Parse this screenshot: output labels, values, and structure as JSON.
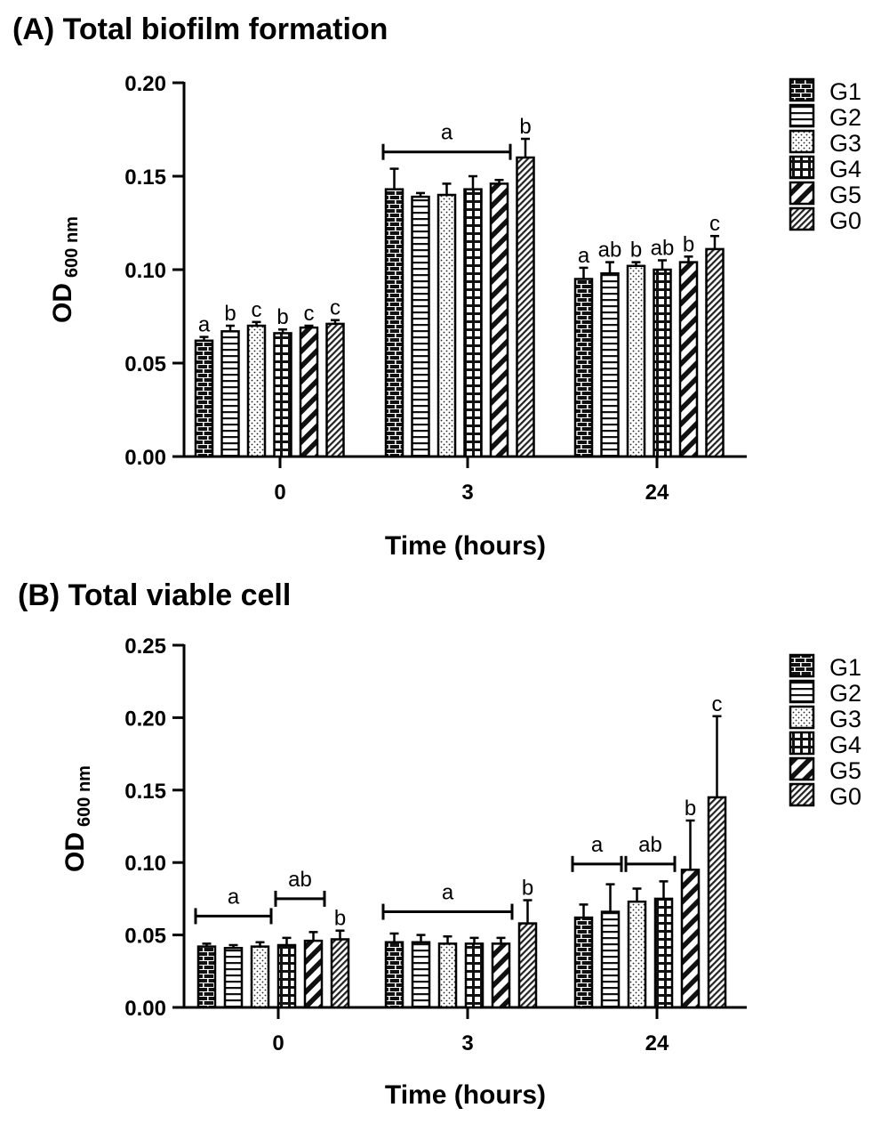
{
  "patterns": {
    "G1": "brick",
    "G2": "horizontal-lines",
    "G3": "dots",
    "G4": "grid",
    "G5": "diagonal-stripes",
    "G0": "fine-diagonal-hatch"
  },
  "chart_data": [
    {
      "type": "bar",
      "title": "(A) Total biofilm formation",
      "xlabel": "Time (hours)",
      "ylabel": "OD",
      "ylabel_sub": "600 nm",
      "ylim": [
        0,
        0.2
      ],
      "yticks": [
        "0.00",
        "0.05",
        "0.10",
        "0.15",
        "0.20"
      ],
      "categories": [
        "0",
        "3",
        "24"
      ],
      "legend_position": "top-right",
      "series": [
        {
          "name": "G1",
          "values": [
            0.062,
            0.143,
            0.095
          ],
          "errors": [
            0.002,
            0.011,
            0.006
          ]
        },
        {
          "name": "G2",
          "values": [
            0.067,
            0.139,
            0.098
          ],
          "errors": [
            0.003,
            0.002,
            0.006
          ]
        },
        {
          "name": "G3",
          "values": [
            0.07,
            0.14,
            0.102
          ],
          "errors": [
            0.002,
            0.006,
            0.002
          ]
        },
        {
          "name": "G4",
          "values": [
            0.066,
            0.143,
            0.1
          ],
          "errors": [
            0.002,
            0.007,
            0.005
          ]
        },
        {
          "name": "G5",
          "values": [
            0.069,
            0.146,
            0.104
          ],
          "errors": [
            0.001,
            0.002,
            0.003
          ]
        },
        {
          "name": "G0",
          "values": [
            0.071,
            0.16,
            0.111
          ],
          "errors": [
            0.002,
            0.01,
            0.007
          ]
        }
      ],
      "annotations": [
        {
          "text": "a",
          "category": 0,
          "series": [
            0
          ],
          "bracket": false
        },
        {
          "text": "b",
          "category": 0,
          "series": [
            1
          ],
          "bracket": false
        },
        {
          "text": "c",
          "category": 0,
          "series": [
            2
          ],
          "bracket": false
        },
        {
          "text": "b",
          "category": 0,
          "series": [
            3
          ],
          "bracket": false
        },
        {
          "text": "c",
          "category": 0,
          "series": [
            4
          ],
          "bracket": false
        },
        {
          "text": "c",
          "category": 0,
          "series": [
            5
          ],
          "bracket": false
        },
        {
          "text": "a",
          "category": 1,
          "series": [
            0,
            4
          ],
          "bracket": true,
          "level": 0.163
        },
        {
          "text": "b",
          "category": 1,
          "series": [
            5
          ],
          "bracket": false
        },
        {
          "text": "a",
          "category": 2,
          "series": [
            0
          ],
          "bracket": false
        },
        {
          "text": "ab",
          "category": 2,
          "series": [
            1
          ],
          "bracket": false
        },
        {
          "text": "b",
          "category": 2,
          "series": [
            2
          ],
          "bracket": false
        },
        {
          "text": "ab",
          "category": 2,
          "series": [
            3
          ],
          "bracket": false
        },
        {
          "text": "b",
          "category": 2,
          "series": [
            4
          ],
          "bracket": false
        },
        {
          "text": "c",
          "category": 2,
          "series": [
            5
          ],
          "bracket": false
        }
      ]
    },
    {
      "type": "bar",
      "title": "(B) Total viable cell",
      "xlabel": "Time (hours)",
      "ylabel": "OD",
      "ylabel_sub": "600 nm",
      "ylim": [
        0,
        0.25
      ],
      "yticks": [
        "0.00",
        "0.05",
        "0.10",
        "0.15",
        "0.20",
        "0.25"
      ],
      "categories": [
        "0",
        "3",
        "24"
      ],
      "legend_position": "top-right",
      "series": [
        {
          "name": "G1",
          "values": [
            0.042,
            0.045,
            0.062
          ],
          "errors": [
            0.002,
            0.006,
            0.009
          ]
        },
        {
          "name": "G2",
          "values": [
            0.041,
            0.045,
            0.066
          ],
          "errors": [
            0.002,
            0.005,
            0.019
          ]
        },
        {
          "name": "G3",
          "values": [
            0.042,
            0.044,
            0.073
          ],
          "errors": [
            0.003,
            0.005,
            0.009
          ]
        },
        {
          "name": "G4",
          "values": [
            0.043,
            0.044,
            0.075
          ],
          "errors": [
            0.005,
            0.004,
            0.012
          ]
        },
        {
          "name": "G5",
          "values": [
            0.046,
            0.044,
            0.095
          ],
          "errors": [
            0.006,
            0.004,
            0.034
          ]
        },
        {
          "name": "G0",
          "values": [
            0.047,
            0.058,
            0.145
          ],
          "errors": [
            0.006,
            0.016,
            0.056
          ]
        }
      ],
      "annotations": [
        {
          "text": "a",
          "category": 0,
          "series": [
            0,
            2
          ],
          "bracket": true,
          "level": 0.063
        },
        {
          "text": "ab",
          "category": 0,
          "series": [
            3,
            4
          ],
          "bracket": true,
          "level": 0.075
        },
        {
          "text": "b",
          "category": 0,
          "series": [
            5
          ],
          "bracket": false
        },
        {
          "text": "a",
          "category": 1,
          "series": [
            0,
            4
          ],
          "bracket": true,
          "level": 0.066
        },
        {
          "text": "b",
          "category": 1,
          "series": [
            5
          ],
          "bracket": false
        },
        {
          "text": "a",
          "category": 2,
          "series": [
            0,
            1
          ],
          "bracket": true,
          "level": 0.099
        },
        {
          "text": "ab",
          "category": 2,
          "series": [
            2,
            3
          ],
          "bracket": true,
          "level": 0.099
        },
        {
          "text": "b",
          "category": 2,
          "series": [
            4
          ],
          "bracket": false
        },
        {
          "text": "c",
          "category": 2,
          "series": [
            5
          ],
          "bracket": false
        }
      ]
    }
  ]
}
